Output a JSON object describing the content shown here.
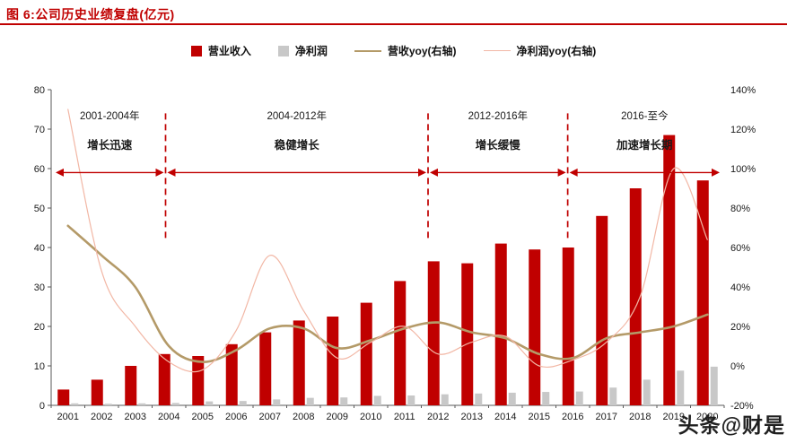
{
  "header": {
    "title": "图 6:公司历史业绩复盘(亿元)"
  },
  "watermark": "头条@财是",
  "colors": {
    "accent_red": "#c00000",
    "bar_revenue": "#c00000",
    "bar_profit": "#c8c8c8",
    "line_revenue_yoy": "#b49a68",
    "line_profit_yoy": "#f2b7a5",
    "axis": "#595959",
    "text": "#1a1a1a"
  },
  "chart_data": {
    "type": "bar+line",
    "title": "公司历史业绩复盘(亿元)",
    "categories": [
      "2001",
      "2002",
      "2003",
      "2004",
      "2005",
      "2006",
      "2007",
      "2008",
      "2009",
      "2010",
      "2011",
      "2012",
      "2013",
      "2014",
      "2015",
      "2016",
      "2017",
      "2018",
      "2019",
      "2020"
    ],
    "series": [
      {
        "name": "营业收入",
        "type": "bar",
        "axis": "left",
        "color": "#c00000",
        "values": [
          4,
          6.5,
          10,
          13,
          12.5,
          15.5,
          18.5,
          21.5,
          22.5,
          26,
          31.5,
          36.5,
          36,
          41,
          39.5,
          40,
          48,
          55,
          68.5,
          57
        ]
      },
      {
        "name": "净利润",
        "type": "bar",
        "axis": "left",
        "color": "#c8c8c8",
        "values": [
          0.5,
          0.4,
          0.5,
          0.6,
          1,
          1.1,
          1.5,
          1.9,
          2,
          2.4,
          2.5,
          2.8,
          3,
          3.2,
          3.4,
          3.5,
          4.5,
          6.5,
          8.8,
          9.8
        ]
      },
      {
        "name": "营收yoy(右轴)",
        "type": "line",
        "axis": "right",
        "color": "#b49a68",
        "stroke_width": 2.6,
        "values": [
          71,
          56,
          40,
          10,
          2,
          8,
          19,
          19,
          9,
          13,
          19,
          22,
          17,
          14,
          6,
          4,
          14,
          17,
          20,
          26
        ]
      },
      {
        "name": "净利润yoy(右轴)",
        "type": "line",
        "axis": "right",
        "color": "#f2b7a5",
        "stroke_width": 1.2,
        "values": [
          130,
          48,
          20,
          2,
          -2,
          18,
          56,
          28,
          4,
          12,
          20,
          6,
          12,
          15,
          0,
          3,
          12,
          35,
          100,
          64
        ]
      }
    ],
    "left_axis": {
      "min": 0,
      "max": 80,
      "step": 10,
      "tick_labels": [
        "0",
        "10",
        "20",
        "30",
        "40",
        "50",
        "60",
        "70",
        "80"
      ]
    },
    "right_axis": {
      "min": -20,
      "max": 140,
      "step": 20,
      "tick_labels": [
        "-20%",
        "0%",
        "20%",
        "40%",
        "60%",
        "80%",
        "100%",
        "120%",
        "140%"
      ]
    },
    "grid": false,
    "legend_position": "top-center",
    "annotations": {
      "accent_color": "#c00000",
      "periods": [
        {
          "range_label": "2001-2004年",
          "name": "增长迅速",
          "from": 0.08,
          "to": 3.4
        },
        {
          "range_label": "2004-2012年",
          "name": "稳健增长",
          "from": 3.4,
          "to": 11.2
        },
        {
          "range_label": "2012-2016年",
          "name": "增长缓慢",
          "from": 11.2,
          "to": 15.35
        },
        {
          "range_label": "2016-至今",
          "name": "加速增长期",
          "from": 15.35,
          "to": 19.92
        }
      ],
      "divider_fracs": [
        3.4,
        11.2,
        15.35
      ],
      "divider_top_value": 74,
      "divider_bottom_value": 42,
      "arrow_value": 59,
      "range_label_value": 72.5,
      "name_value": 65
    }
  }
}
